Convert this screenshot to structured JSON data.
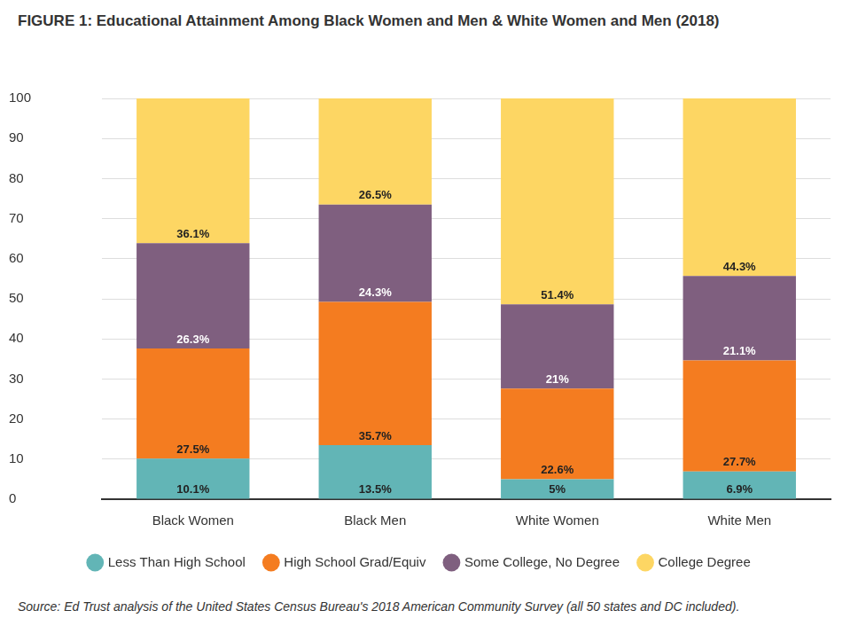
{
  "chart_data": {
    "type": "bar",
    "title": "FIGURE 1: Educational Attainment Among Black Women and Men & White Women and Men (2018)",
    "source": "Source: Ed Trust analysis of the United States Census Bureau's 2018 American Community Survey (all 50 states and DC included).",
    "categories": [
      "Black Women",
      "Black Men",
      "White Women",
      "White Men"
    ],
    "series": [
      {
        "name": "Less Than High School",
        "color": "#62b5b6",
        "values": [
          10.1,
          13.5,
          5,
          6.9
        ],
        "value_labels": [
          "10.1%",
          "13.5%",
          "5%",
          "6.9%"
        ]
      },
      {
        "name": "High School Grad/Equiv",
        "color": "#f47c20",
        "values": [
          27.5,
          35.7,
          22.6,
          27.7
        ],
        "value_labels": [
          "27.5%",
          "35.7%",
          "22.6%",
          "27.7%"
        ]
      },
      {
        "name": "Some College, No Degree",
        "color": "#7f5f7f",
        "values": [
          26.3,
          24.3,
          21,
          21.1
        ],
        "value_labels": [
          "26.3%",
          "24.3%",
          "21%",
          "21.1%"
        ]
      },
      {
        "name": "College Degree",
        "color": "#fdd663",
        "values": [
          36.1,
          26.5,
          51.4,
          44.3
        ],
        "value_labels": [
          "36.1%",
          "26.5%",
          "51.4%",
          "44.3%"
        ]
      }
    ],
    "ylim": [
      0,
      100
    ],
    "yticks": [
      0,
      10,
      20,
      30,
      40,
      50,
      60,
      70,
      80,
      90,
      100
    ],
    "grid": true,
    "stacked": true,
    "data_labels": true,
    "legend": "bottom"
  }
}
